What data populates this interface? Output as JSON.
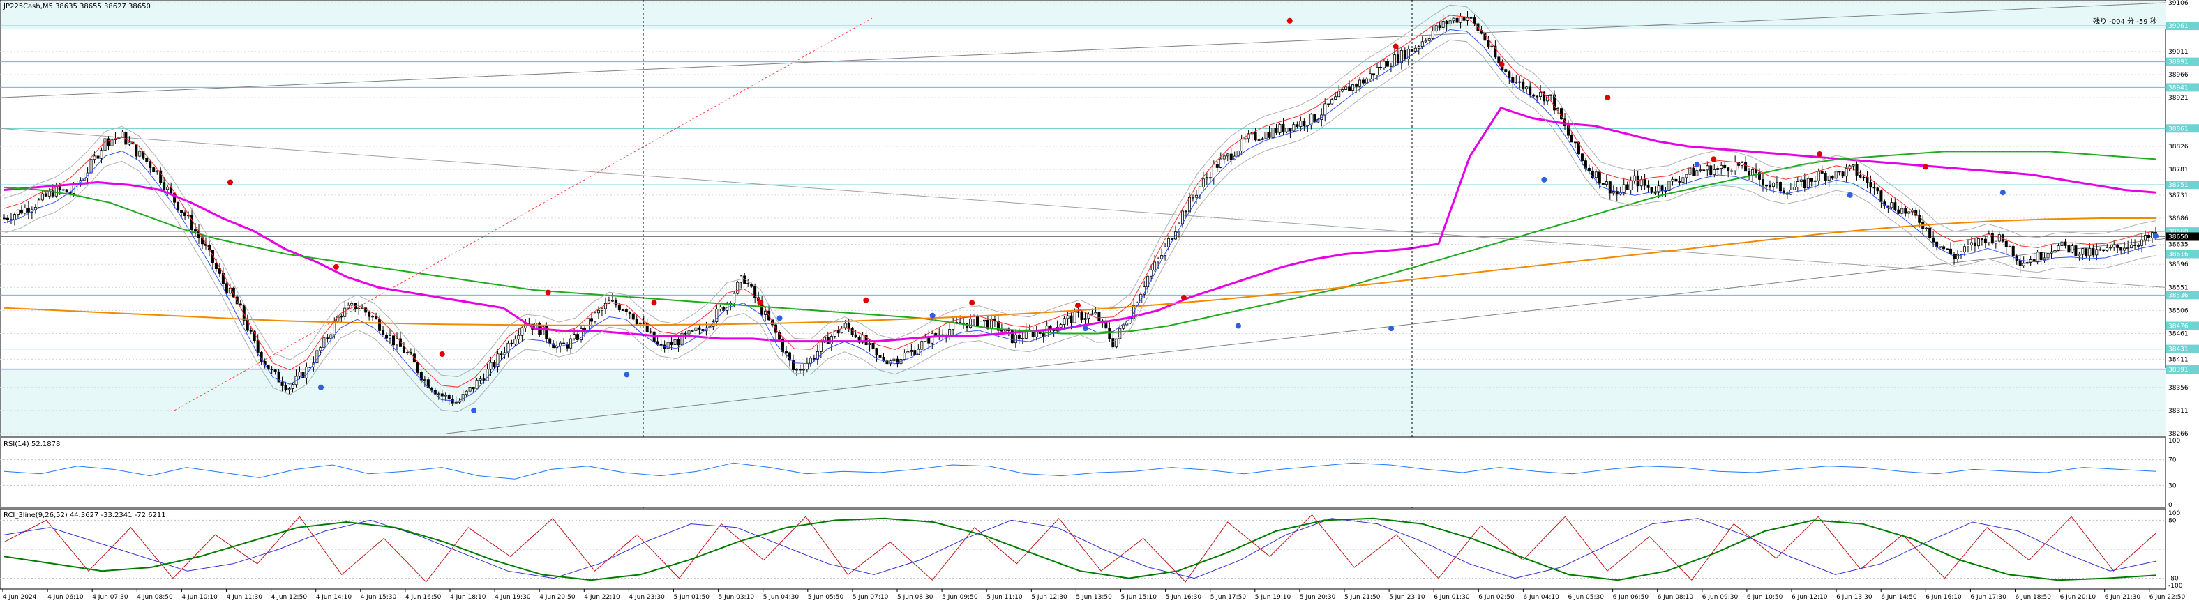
{
  "chart_data": [
    {
      "type": "candlestick",
      "title": "JP225Cash,M5  38635 38655 38627 38650",
      "info_right": "残り -004 分 -59 秒",
      "price_axis": {
        "ylim": [
          38266,
          39106
        ],
        "tick_labels": [
          "39106",
          "39011",
          "38966",
          "38921",
          "38826",
          "38781",
          "38731",
          "38686",
          "38635",
          "38596",
          "38551",
          "38506",
          "38461",
          "38411",
          "38356",
          "38311",
          "38266"
        ],
        "highlighted_labels": [
          "39061",
          "38991",
          "38941",
          "38861",
          "38751",
          "38660",
          "38616",
          "38536",
          "38476",
          "38431",
          "38391"
        ],
        "current_price_label": "38650"
      },
      "time_axis": {
        "tick_labels": [
          "4 Jun 2024",
          "4 Jun 06:10",
          "4 Jun 07:30",
          "4 Jun 08:50",
          "4 Jun 10:10",
          "4 Jun 11:30",
          "4 Jun 12:50",
          "4 Jun 14:10",
          "4 Jun 15:30",
          "4 Jun 16:50",
          "4 Jun 18:10",
          "4 Jun 19:30",
          "4 Jun 20:50",
          "4 Jun 22:10",
          "4 Jun 23:30",
          "5 Jun 01:50",
          "5 Jun 03:10",
          "5 Jun 04:30",
          "5 Jun 05:50",
          "5 Jun 07:10",
          "5 Jun 08:30",
          "5 Jun 09:50",
          "5 Jun 11:10",
          "5 Jun 12:30",
          "5 Jun 13:50",
          "5 Jun 15:10",
          "5 Jun 16:30",
          "5 Jun 17:50",
          "5 Jun 19:10",
          "5 Jun 20:30",
          "5 Jun 21:50",
          "5 Jun 23:10",
          "6 Jun 01:30",
          "6 Jun 02:50",
          "6 Jun 04:10",
          "6 Jun 05:30",
          "6 Jun 06:50",
          "6 Jun 08:10",
          "6 Jun 09:30",
          "6 Jun 10:50",
          "6 Jun 12:10",
          "6 Jun 13:30",
          "6 Jun 14:50",
          "6 Jun 16:10",
          "6 Jun 17:30",
          "6 Jun 18:50",
          "6 Jun 20:10",
          "6 Jun 21:30",
          "6 Jun 22:50"
        ]
      },
      "price_path": [
        38686,
        38701,
        38716,
        38741,
        38736,
        38781,
        38836,
        38846,
        38811,
        38781,
        38726,
        38681,
        38626,
        38561,
        38511,
        38431,
        38381,
        38356,
        38391,
        38441,
        38501,
        38516,
        38491,
        38451,
        38421,
        38371,
        38341,
        38326,
        38361,
        38396,
        38441,
        38486,
        38466,
        38431,
        38451,
        38491,
        38521,
        38511,
        38476,
        38431,
        38446,
        38461,
        38486,
        38521,
        38571,
        38511,
        38456,
        38386,
        38411,
        38451,
        38476,
        38451,
        38411,
        38411,
        38426,
        38451,
        38466,
        38481,
        38486,
        38476,
        38451,
        38461,
        38466,
        38486,
        38496,
        38496,
        38441,
        38501,
        38571,
        38621,
        38691,
        38741,
        38786,
        38811,
        38841,
        38851,
        38861,
        38871,
        38881,
        38911,
        38941,
        38956,
        38986,
        39001,
        39021,
        39051,
        39071,
        39081,
        39041,
        38981,
        38951,
        38931,
        38921,
        38851,
        38791,
        38761,
        38731,
        38761,
        38741,
        38751,
        38771,
        38781,
        38781,
        38791,
        38771,
        38751,
        38741,
        38751,
        38771,
        38771,
        38781,
        38751,
        38716,
        38701,
        38681,
        38636,
        38611,
        38631,
        38651,
        38641,
        38601,
        38611,
        38631,
        38626,
        38616,
        38621,
        38631,
        38641,
        38650
      ],
      "series": [
        {
          "name": "magenta",
          "color": "#e600e6",
          "values": [
            38741,
            38746,
            38751,
            38756,
            38751,
            38741,
            38716,
            38686,
            38661,
            38626,
            38601,
            38571,
            38551,
            38541,
            38531,
            38521,
            38511,
            38471,
            38466,
            38466,
            38461,
            38456,
            38456,
            38451,
            38451,
            38446,
            38446,
            38446,
            38446,
            38451,
            38456,
            38456,
            38461,
            38466,
            38471,
            38481,
            38491,
            38506,
            38531,
            38551,
            38571,
            38591,
            38606,
            38616,
            38621,
            38626,
            38636,
            38806,
            38901,
            38881,
            38871,
            38866,
            38851,
            38836,
            38826,
            38821,
            38816,
            38811,
            38806,
            38801,
            38796,
            38791,
            38786,
            38781,
            38776,
            38771,
            38761,
            38751,
            38741,
            38736
          ]
        },
        {
          "name": "green",
          "color": "#1faa1f",
          "values": [
            38746,
            38741,
            38731,
            38716,
            38691,
            38666,
            38646,
            38631,
            38616,
            38606,
            38596,
            38586,
            38576,
            38566,
            38556,
            38546,
            38541,
            38536,
            38531,
            38526,
            38521,
            38516,
            38511,
            38506,
            38501,
            38496,
            38491,
            38481,
            38471,
            38466,
            38461,
            38461,
            38466,
            38476,
            38491,
            38506,
            38521,
            38536,
            38551,
            38571,
            38591,
            38611,
            38631,
            38651,
            38671,
            38691,
            38711,
            38731,
            38746,
            38761,
            38776,
            38791,
            38801,
            38806,
            38811,
            38816,
            38816,
            38816,
            38816,
            38811,
            38806,
            38801
          ]
        },
        {
          "name": "orange",
          "color": "#f08a00",
          "values": [
            38511,
            38506,
            38501,
            38496,
            38491,
            38486,
            38483,
            38481,
            38479,
            38478,
            38477,
            38477,
            38478,
            38479,
            38481,
            38484,
            38488,
            38492,
            38497,
            38503,
            38510,
            38518,
            38527,
            38537,
            38548,
            38560,
            38572,
            38584,
            38596,
            38608,
            38620,
            38632,
            38644,
            38656,
            38666,
            38674,
            38680,
            38684,
            38686,
            38686
          ]
        }
      ],
      "marker_points": {
        "red_dots": [
          38756,
          38591,
          38421,
          38541,
          38521,
          38521,
          38526,
          38521,
          38516,
          38531,
          39071,
          39021,
          38986,
          38921,
          38801,
          38811,
          38786
        ],
        "blue_dots": [
          38356,
          38311,
          38381,
          38491,
          38496,
          38471,
          38476,
          38471,
          38761,
          38791,
          38731,
          38736,
          38651
        ]
      }
    },
    {
      "type": "line",
      "title": "RSI(14) 52.1878",
      "ylim": [
        0,
        100
      ],
      "tick_labels": [
        "100",
        "70",
        "30",
        "0"
      ],
      "series": [
        {
          "name": "RSI(14)",
          "color": "#1e78ff",
          "values": [
            52,
            48,
            60,
            55,
            45,
            58,
            50,
            42,
            55,
            62,
            48,
            52,
            58,
            45,
            40,
            55,
            60,
            50,
            45,
            52,
            65,
            58,
            48,
            52,
            50,
            55,
            62,
            60,
            48,
            45,
            50,
            52,
            58,
            54,
            48,
            55,
            60,
            65,
            62,
            55,
            50,
            58,
            52,
            48,
            55,
            60,
            58,
            52,
            50,
            55,
            60,
            58,
            52,
            48,
            55,
            52,
            50,
            58,
            55,
            52
          ]
        }
      ]
    },
    {
      "type": "line",
      "title": "RCI_3line(9,26,52) 44.3627 -33.2341 -72.6211",
      "ylim": [
        -100,
        100
      ],
      "tick_labels": [
        "100",
        "80",
        "-80",
        "-100"
      ],
      "series": [
        {
          "name": "RCI 9",
          "color": "#c01818",
          "values": [
            20,
            80,
            -60,
            60,
            -80,
            40,
            -40,
            90,
            -70,
            30,
            -90,
            60,
            -20,
            85,
            -60,
            40,
            -80,
            70,
            -30,
            90,
            -70,
            20,
            -85,
            60,
            -40,
            85,
            -60,
            30,
            -90,
            75,
            -20,
            95,
            -50,
            40,
            -80,
            65,
            -30,
            90,
            -60,
            35,
            -85,
            70,
            -25,
            90,
            -55,
            40,
            -80,
            60,
            -30,
            90,
            -60,
            44
          ]
        },
        {
          "name": "RCI 26",
          "color": "#3030d0",
          "values": [
            40,
            60,
            20,
            -20,
            -60,
            -40,
            0,
            50,
            80,
            40,
            -10,
            -60,
            -80,
            -40,
            20,
            70,
            60,
            10,
            -40,
            -70,
            -30,
            30,
            80,
            60,
            0,
            -50,
            -80,
            -30,
            40,
            85,
            70,
            20,
            -40,
            -80,
            -50,
            10,
            70,
            85,
            40,
            -20,
            -70,
            -40,
            20,
            75,
            50,
            -10,
            -60,
            -33
          ]
        },
        {
          "name": "RCI 52",
          "color": "#007a00",
          "values": [
            -20,
            -40,
            -60,
            -50,
            -20,
            20,
            60,
            75,
            60,
            20,
            -30,
            -70,
            -85,
            -70,
            -30,
            20,
            60,
            80,
            85,
            75,
            40,
            -10,
            -60,
            -80,
            -60,
            -10,
            50,
            80,
            85,
            70,
            30,
            -20,
            -70,
            -85,
            -60,
            -10,
            50,
            80,
            70,
            30,
            -30,
            -70,
            -85,
            -80,
            -72
          ]
        }
      ]
    }
  ]
}
